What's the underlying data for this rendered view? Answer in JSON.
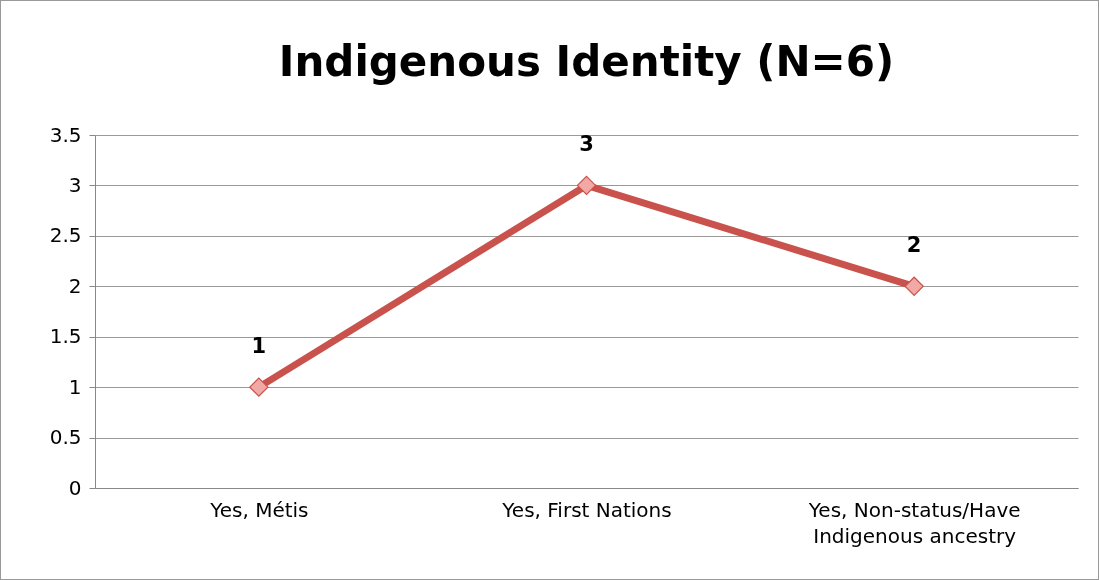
{
  "chart_data": {
    "type": "line",
    "title": "Indigenous Identity (N=6)",
    "categories": [
      "Yes, Métis",
      "Yes, First Nations",
      "Yes, Non-status/Have Indigenous ancestry"
    ],
    "series": [
      {
        "color": "#c9524d",
        "values": [
          1,
          3,
          2
        ]
      }
    ],
    "ylim": [
      0,
      3.5
    ],
    "yticks": [
      0,
      0.5,
      1,
      1.5,
      2,
      2.5,
      3,
      3.5
    ],
    "grid": "y",
    "legend": false,
    "marker": "diamond",
    "line_style": "solid",
    "data_labels": true
  }
}
